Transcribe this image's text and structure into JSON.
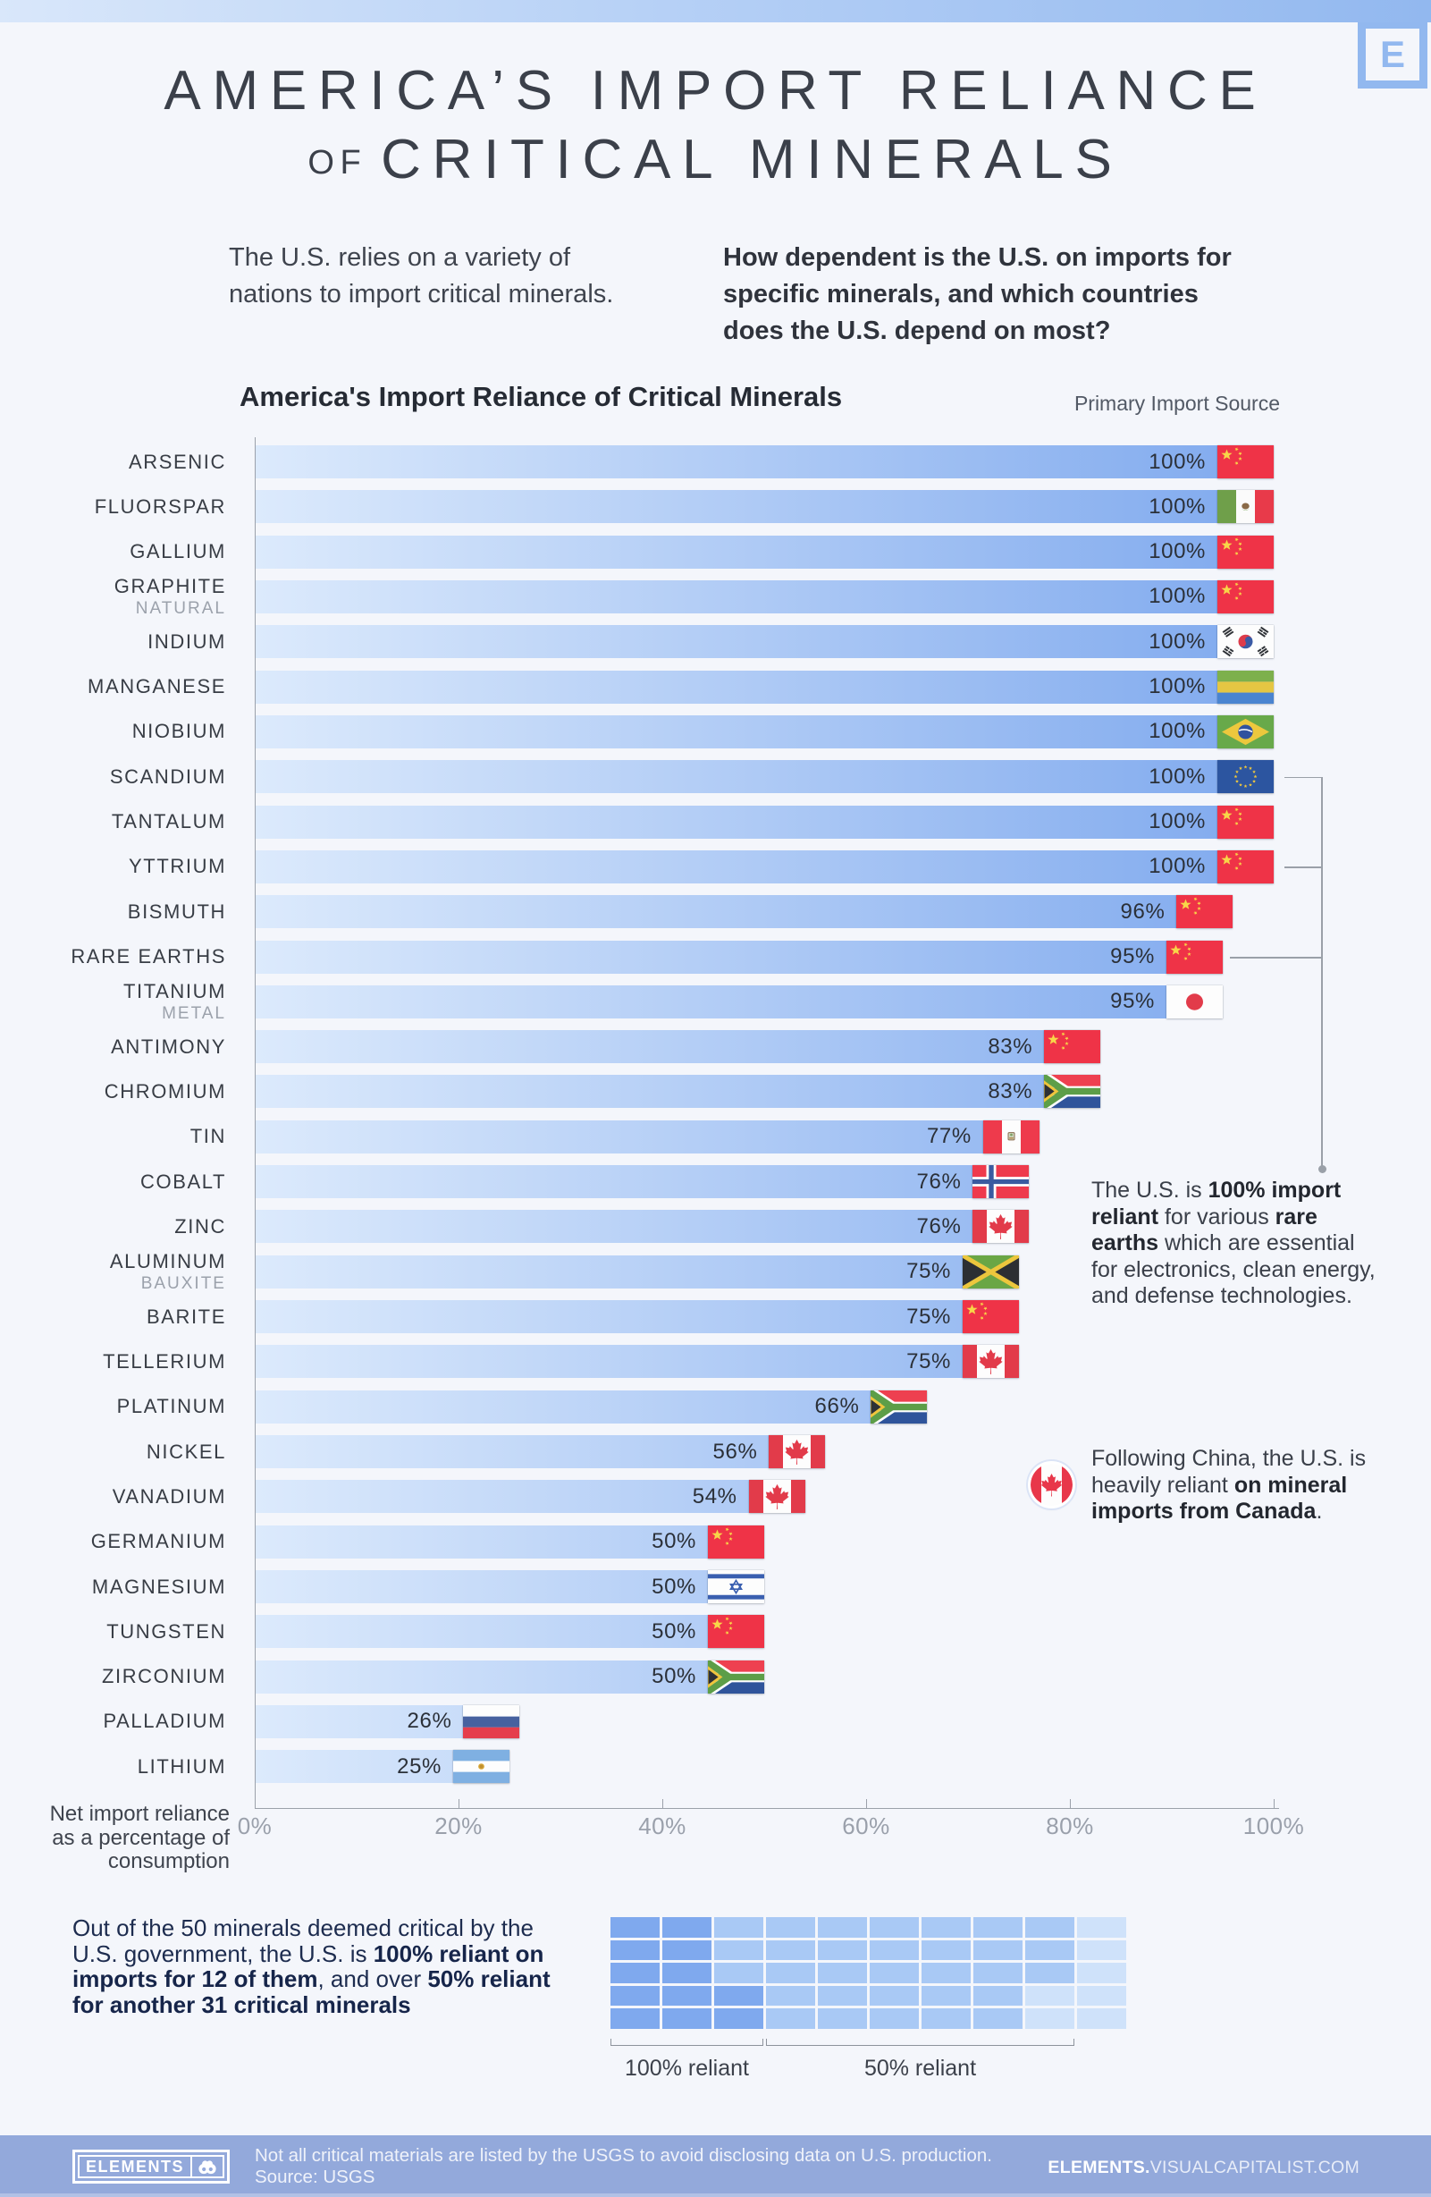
{
  "page": {
    "badge_letter": "E",
    "title_line1": "AMERICA’S IMPORT RELIANCE",
    "title_line2_small": "OF",
    "title_line2": "CRITICAL MINERALS",
    "intro_left_lines": [
      "The U.S. relies on a variety of",
      "nations to import critical minerals."
    ],
    "intro_right_lines": [
      "How dependent is the U.S. on imports for",
      "specific minerals, and which countries",
      "does the U.S. depend on most?"
    ]
  },
  "chart_data": {
    "type": "bar",
    "title": "America's Import Reliance of Critical Minerals",
    "right_header": "Primary Import Source",
    "xlabel_lines": [
      "Net import reliance",
      "as a percentage of",
      "consumption"
    ],
    "x_ticks": [
      "0%",
      "20%",
      "40%",
      "60%",
      "80%",
      "100%"
    ],
    "xlim": [
      0,
      100
    ],
    "legend_note": "flag shown at bar end = primary import source country",
    "bars": [
      {
        "label": "ARSENIC",
        "sublabel": "",
        "value": 100,
        "value_label": "100%",
        "source_country": "China",
        "flag": "china"
      },
      {
        "label": "FLUORSPAR",
        "sublabel": "",
        "value": 100,
        "value_label": "100%",
        "source_country": "Mexico",
        "flag": "mexico"
      },
      {
        "label": "GALLIUM",
        "sublabel": "",
        "value": 100,
        "value_label": "100%",
        "source_country": "China",
        "flag": "china"
      },
      {
        "label": "GRAPHITE",
        "sublabel": "NATURAL",
        "value": 100,
        "value_label": "100%",
        "source_country": "China",
        "flag": "china"
      },
      {
        "label": "INDIUM",
        "sublabel": "",
        "value": 100,
        "value_label": "100%",
        "source_country": "South Korea",
        "flag": "south-korea"
      },
      {
        "label": "MANGANESE",
        "sublabel": "",
        "value": 100,
        "value_label": "100%",
        "source_country": "Gabon",
        "flag": "gabon"
      },
      {
        "label": "NIOBIUM",
        "sublabel": "",
        "value": 100,
        "value_label": "100%",
        "source_country": "Brazil",
        "flag": "brazil"
      },
      {
        "label": "SCANDIUM",
        "sublabel": "",
        "value": 100,
        "value_label": "100%",
        "source_country": "European Union",
        "flag": "european-union"
      },
      {
        "label": "TANTALUM",
        "sublabel": "",
        "value": 100,
        "value_label": "100%",
        "source_country": "China",
        "flag": "china"
      },
      {
        "label": "YTTRIUM",
        "sublabel": "",
        "value": 100,
        "value_label": "100%",
        "source_country": "China",
        "flag": "china"
      },
      {
        "label": "BISMUTH",
        "sublabel": "",
        "value": 96,
        "value_label": "96%",
        "source_country": "China",
        "flag": "china"
      },
      {
        "label": "RARE EARTHS",
        "sublabel": "",
        "value": 95,
        "value_label": "95%",
        "source_country": "China",
        "flag": "china"
      },
      {
        "label": "TITANIUM",
        "sublabel": "METAL",
        "value": 95,
        "value_label": "95%",
        "source_country": "Japan",
        "flag": "japan"
      },
      {
        "label": "ANTIMONY",
        "sublabel": "",
        "value": 83,
        "value_label": "83%",
        "source_country": "China",
        "flag": "china"
      },
      {
        "label": "CHROMIUM",
        "sublabel": "",
        "value": 83,
        "value_label": "83%",
        "source_country": "South Africa",
        "flag": "south-africa"
      },
      {
        "label": "TIN",
        "sublabel": "",
        "value": 77,
        "value_label": "77%",
        "source_country": "Peru",
        "flag": "peru"
      },
      {
        "label": "COBALT",
        "sublabel": "",
        "value": 76,
        "value_label": "76%",
        "source_country": "Norway",
        "flag": "norway"
      },
      {
        "label": "ZINC",
        "sublabel": "",
        "value": 76,
        "value_label": "76%",
        "source_country": "Canada",
        "flag": "canada"
      },
      {
        "label": "ALUMINUM",
        "sublabel": "BAUXITE",
        "value": 75,
        "value_label": "75%",
        "source_country": "Jamaica",
        "flag": "jamaica"
      },
      {
        "label": "BARITE",
        "sublabel": "",
        "value": 75,
        "value_label": "75%",
        "source_country": "China",
        "flag": "china"
      },
      {
        "label": "TELLERIUM",
        "sublabel": "",
        "value": 75,
        "value_label": "75%",
        "source_country": "Canada",
        "flag": "canada"
      },
      {
        "label": "PLATINUM",
        "sublabel": "",
        "value": 66,
        "value_label": "66%",
        "source_country": "South Africa",
        "flag": "south-africa"
      },
      {
        "label": "NICKEL",
        "sublabel": "",
        "value": 56,
        "value_label": "56%",
        "source_country": "Canada",
        "flag": "canada"
      },
      {
        "label": "VANADIUM",
        "sublabel": "",
        "value": 54,
        "value_label": "54%",
        "source_country": "Canada",
        "flag": "canada"
      },
      {
        "label": "GERMANIUM",
        "sublabel": "",
        "value": 50,
        "value_label": "50%",
        "source_country": "China",
        "flag": "china"
      },
      {
        "label": "MAGNESIUM",
        "sublabel": "",
        "value": 50,
        "value_label": "50%",
        "source_country": "Israel",
        "flag": "israel"
      },
      {
        "label": "TUNGSTEN",
        "sublabel": "",
        "value": 50,
        "value_label": "50%",
        "source_country": "China",
        "flag": "china"
      },
      {
        "label": "ZIRCONIUM",
        "sublabel": "",
        "value": 50,
        "value_label": "50%",
        "source_country": "South Africa",
        "flag": "south-africa"
      },
      {
        "label": "PALLADIUM",
        "sublabel": "",
        "value": 26,
        "value_label": "26%",
        "source_country": "Russia",
        "flag": "russia"
      },
      {
        "label": "LITHIUM",
        "sublabel": "",
        "value": 25,
        "value_label": "25%",
        "source_country": "Argentina",
        "flag": "argentina"
      }
    ]
  },
  "annotations": {
    "rare_earths": {
      "lines": [
        [
          {
            "t": "The U.S. is "
          },
          {
            "t": "100% import",
            "b": 1
          }
        ],
        [
          {
            "t": "reliant",
            "b": 1
          },
          {
            "t": " for various "
          },
          {
            "t": "rare",
            "b": 1
          }
        ],
        [
          {
            "t": "earths",
            "b": 1
          },
          {
            "t": " which are essential"
          }
        ],
        [
          {
            "t": "for electronics, clean energy,"
          }
        ],
        [
          {
            "t": "and defense technologies."
          }
        ]
      ]
    },
    "canada": {
      "lines": [
        [
          {
            "t": "Following China, the U.S. is"
          }
        ],
        [
          {
            "t": "heavily reliant "
          },
          {
            "t": "on mineral",
            "b": 1
          }
        ],
        [
          {
            "t": "imports from Canada",
            "b": 1
          },
          {
            "t": "."
          }
        ]
      ]
    }
  },
  "bottom": {
    "paragraph_lines": [
      [
        {
          "t": "Out of the 50 minerals deemed critical by the"
        }
      ],
      [
        {
          "t": "U.S. government, the U.S. is "
        },
        {
          "t": "100% reliant on",
          "b": 1
        }
      ],
      [
        {
          "t": "imports for 12 of them",
          "b": 1
        },
        {
          "t": ", and over "
        },
        {
          "t": "50% reliant",
          "b": 1
        }
      ],
      [
        {
          "t": "for another 31 critical minerals",
          "b": 1
        }
      ]
    ],
    "waffle": {
      "total_cells": 50,
      "full_reliant_cells": 12,
      "half_reliant_cells": 31,
      "other_cells": 7,
      "rows": [
        "ddmmmmmmml",
        "ddmmmmmmml",
        "ddmmmmmmml",
        "dddmmmmmll",
        "dddmmmmmll"
      ]
    },
    "legend_full": "100% reliant",
    "legend_half": "50% reliant"
  },
  "footer": {
    "logo_text": "ELEMENTS",
    "note_line1": "Not all critical materials are listed by the USGS to avoid disclosing data on U.S. production.",
    "note_line2": "Source: USGS",
    "site_bold": "ELEMENTS.",
    "site_rest": "VISUALCAPITALIST.COM"
  },
  "colors": {
    "background": "#f4f6fb",
    "bar_gradient_start": "#dceafc",
    "bar_gradient_end": "#7fa9ee",
    "accent_blue": "#92b8ef",
    "navy_text": "#1d2c4f",
    "footer_bg": "#93a9db",
    "waffle_dark": "#7fa9ee",
    "waffle_medium": "#a9c9f5",
    "waffle_light": "#cfe2fa"
  }
}
